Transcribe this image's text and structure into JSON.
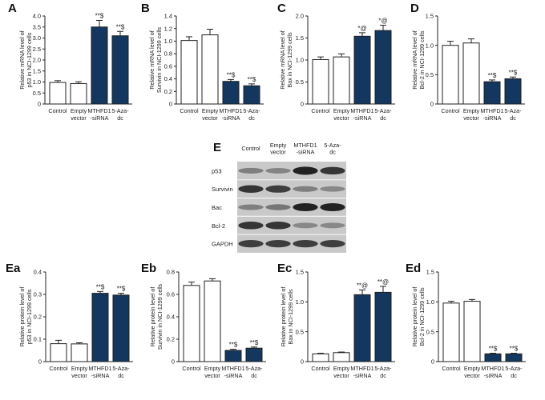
{
  "colors": {
    "control": "#ffffff",
    "empty_vector": "#ffffff",
    "filled": "#13375e",
    "axis": "#222222"
  },
  "chart_data": [
    {
      "panel": "A",
      "type": "bar",
      "ylabel": [
        "Relative mRNA level of",
        "p53 in NCI-1299 cells"
      ],
      "ylim": [
        0,
        4.0
      ],
      "ticks": [
        0,
        0.5,
        1.0,
        1.5,
        2.0,
        2.5,
        3.0,
        3.5,
        4.0
      ],
      "ticklabels": [
        "0",
        "0.5",
        "1.0",
        "1.5",
        "2.0",
        "2.5",
        "3.0",
        "3.5",
        "4.0"
      ],
      "categories": [
        [
          "Control"
        ],
        [
          "Empty",
          "vector"
        ],
        [
          "MTHFD1",
          "-siRNA"
        ],
        [
          "5-Aza-",
          "dc"
        ]
      ],
      "values": [
        0.98,
        0.93,
        3.5,
        3.1
      ],
      "errors": [
        0.08,
        0.08,
        0.3,
        0.2
      ],
      "annotations": [
        "",
        "",
        "**$",
        "**$"
      ]
    },
    {
      "panel": "B",
      "type": "bar",
      "ylabel": [
        "Relative mRNA level of",
        "Survivin in NCI-1299 cells"
      ],
      "ylim": [
        0,
        1.4
      ],
      "ticks": [
        0,
        0.2,
        0.4,
        0.6,
        0.8,
        1.0,
        1.2,
        1.4
      ],
      "ticklabels": [
        "0",
        "0.2",
        "0.4",
        "0.6",
        "0.8",
        "1.0",
        "1.2",
        "1.4"
      ],
      "categories": [
        [
          "Control"
        ],
        [
          "Empty",
          "vector"
        ],
        [
          "MTHFD1",
          "-siRNA"
        ],
        [
          "5-Aza-",
          "dc"
        ]
      ],
      "values": [
        1.01,
        1.1,
        0.36,
        0.29
      ],
      "errors": [
        0.06,
        0.09,
        0.03,
        0.03
      ],
      "annotations": [
        "",
        "",
        "**$",
        "**$"
      ]
    },
    {
      "panel": "C",
      "type": "bar",
      "ylabel": [
        "Relative mRNA level of",
        "Bax in NCI-1299 cells"
      ],
      "ylim": [
        0,
        2.0
      ],
      "ticks": [
        0,
        0.5,
        1.0,
        1.5,
        2.0
      ],
      "ticklabels": [
        "0",
        "0.5",
        "1.0",
        "1.5",
        "2.0"
      ],
      "categories": [
        [
          "Control"
        ],
        [
          "Empty",
          "vector"
        ],
        [
          "MTHFD1",
          "-siRNA"
        ],
        [
          "5-Aza-",
          "dc"
        ]
      ],
      "values": [
        1.01,
        1.07,
        1.54,
        1.67
      ],
      "errors": [
        0.06,
        0.07,
        0.08,
        0.12
      ],
      "annotations": [
        "",
        "",
        "*@",
        "*@"
      ]
    },
    {
      "panel": "D",
      "type": "bar",
      "ylabel": [
        "Relative mRNA level of",
        "Bcl-2 in NCI-1299 cells"
      ],
      "ylim": [
        0,
        1.5
      ],
      "ticks": [
        0,
        0.5,
        1.0,
        1.5
      ],
      "ticklabels": [
        "0",
        "0.5",
        "1.0",
        "1.5"
      ],
      "categories": [
        [
          "Control"
        ],
        [
          "Empty",
          "vector"
        ],
        [
          "MTHFD1",
          "-siRNA"
        ],
        [
          "5-Aza-",
          "dc"
        ]
      ],
      "values": [
        1.0,
        1.04,
        0.38,
        0.43
      ],
      "errors": [
        0.07,
        0.07,
        0.03,
        0.03
      ],
      "annotations": [
        "",
        "",
        "**$",
        "**$"
      ]
    },
    {
      "panel": "Ea",
      "type": "bar",
      "ylabel": [
        "Relative protein level of",
        "p53 in NCI-1299 cells"
      ],
      "ylim": [
        0,
        0.4
      ],
      "ticks": [
        0,
        0.1,
        0.2,
        0.3,
        0.4
      ],
      "ticklabels": [
        "0",
        "0.1",
        "0.2",
        "0.3",
        "0.4"
      ],
      "categories": [
        [
          "Control"
        ],
        [
          "Empty",
          "vector"
        ],
        [
          "MTHFD1",
          "-siRNA"
        ],
        [
          "5-Aza-",
          "dc"
        ]
      ],
      "values": [
        0.08,
        0.079,
        0.305,
        0.297
      ],
      "errors": [
        0.015,
        0.005,
        0.008,
        0.008
      ],
      "annotations": [
        "",
        "",
        "**$",
        "**$"
      ]
    },
    {
      "panel": "Eb",
      "type": "bar",
      "ylabel": [
        "Relative protein level of",
        "Survivin in NCI-1299 cells"
      ],
      "ylim": [
        0,
        0.8
      ],
      "ticks": [
        0,
        0.2,
        0.4,
        0.6,
        0.8
      ],
      "ticklabels": [
        "0",
        "0.2",
        "0.4",
        "0.6",
        "0.8"
      ],
      "categories": [
        [
          "Control"
        ],
        [
          "Empty",
          "vector"
        ],
        [
          "MTHFD1",
          "-siRNA"
        ],
        [
          "5-Aza-",
          "dc"
        ]
      ],
      "values": [
        0.68,
        0.72,
        0.1,
        0.12
      ],
      "errors": [
        0.03,
        0.02,
        0.01,
        0.01
      ],
      "annotations": [
        "",
        "",
        "**$",
        "**$"
      ]
    },
    {
      "panel": "Ec",
      "type": "bar",
      "ylabel": [
        "Relative protein level of",
        "Bax in NCI-1299 cells"
      ],
      "ylim": [
        0,
        1.5
      ],
      "ticks": [
        0,
        0.5,
        1.0,
        1.5
      ],
      "ticklabels": [
        "0",
        "0.5",
        "1.0",
        "1.5"
      ],
      "categories": [
        [
          "Control"
        ],
        [
          "Empty",
          "vector"
        ],
        [
          "MTHFD1",
          "-siRNA"
        ],
        [
          "5-Aza-",
          "dc"
        ]
      ],
      "values": [
        0.13,
        0.15,
        1.12,
        1.16
      ],
      "errors": [
        0.01,
        0.01,
        0.08,
        0.1
      ],
      "annotations": [
        "",
        "",
        "**@",
        "**@"
      ]
    },
    {
      "panel": "Ed",
      "type": "bar",
      "ylabel": [
        "Relative protein level of",
        "Bcl-2 in NCI-1299 cells"
      ],
      "ylim": [
        0,
        1.5
      ],
      "ticks": [
        0,
        0.5,
        1.0,
        1.5
      ],
      "ticklabels": [
        "0",
        "0.5",
        "1.0",
        "1.5"
      ],
      "categories": [
        [
          "Control"
        ],
        [
          "Empty",
          "vector"
        ],
        [
          "MTHFD1",
          "-siRNA"
        ],
        [
          "5-Aza-",
          "dc"
        ]
      ],
      "values": [
        0.98,
        1.01,
        0.13,
        0.13
      ],
      "errors": [
        0.03,
        0.03,
        0.01,
        0.01
      ],
      "annotations": [
        "",
        "",
        "**$",
        "**$"
      ]
    }
  ],
  "western_blot": {
    "panel": "E",
    "columns": [
      [
        "Control"
      ],
      [
        "Empty",
        "vector"
      ],
      [
        "MTHFD1",
        "-siRNA"
      ],
      [
        "5-Aza-",
        "dc"
      ]
    ],
    "rows": [
      "p53",
      "Survivin",
      "Bac",
      "Bcl-2",
      "GAPDH"
    ],
    "band_intensity": [
      [
        0.45,
        0.42,
        0.95,
        0.85
      ],
      [
        0.85,
        0.8,
        0.45,
        0.4
      ],
      [
        0.45,
        0.5,
        0.95,
        0.95
      ],
      [
        0.85,
        0.85,
        0.4,
        0.4
      ],
      [
        0.8,
        0.8,
        0.8,
        0.8
      ]
    ]
  }
}
